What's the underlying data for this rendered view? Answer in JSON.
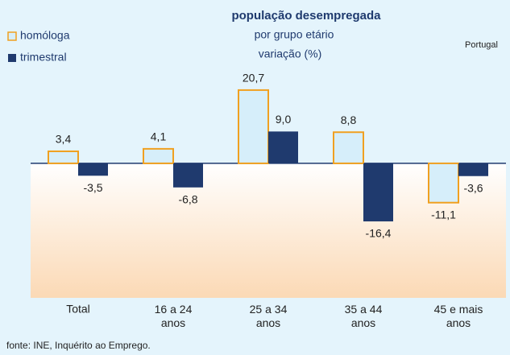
{
  "chart_data": {
    "type": "bar",
    "title": "população desempregada",
    "subtitle": "por grupo etário",
    "y_label": "variação (%)",
    "region": "Portugal",
    "source": "fonte: INE, Inquérito ao Emprego.",
    "categories": [
      "Total",
      "16 a 24 anos",
      "25 a 34 anos",
      "35 a 44 anos",
      "45 e mais anos"
    ],
    "series": [
      {
        "name": "homóloga",
        "color": "#d6eefa",
        "edge": "#f0a020",
        "values": [
          3.4,
          4.1,
          20.7,
          8.8,
          -11.1
        ],
        "value_labels": [
          "3,4",
          "4,1",
          "20,7",
          "8,8",
          "-11,1"
        ]
      },
      {
        "name": "trimestral",
        "color": "#1f3a6e",
        "values": [
          -3.5,
          -6.8,
          9.0,
          -16.4,
          -3.6
        ],
        "value_labels": [
          "-3,5",
          "-6,8",
          "9,0",
          "-16,4",
          "-3,6"
        ]
      }
    ],
    "ylim": [
      -38,
      25
    ],
    "legend": "top-left"
  }
}
